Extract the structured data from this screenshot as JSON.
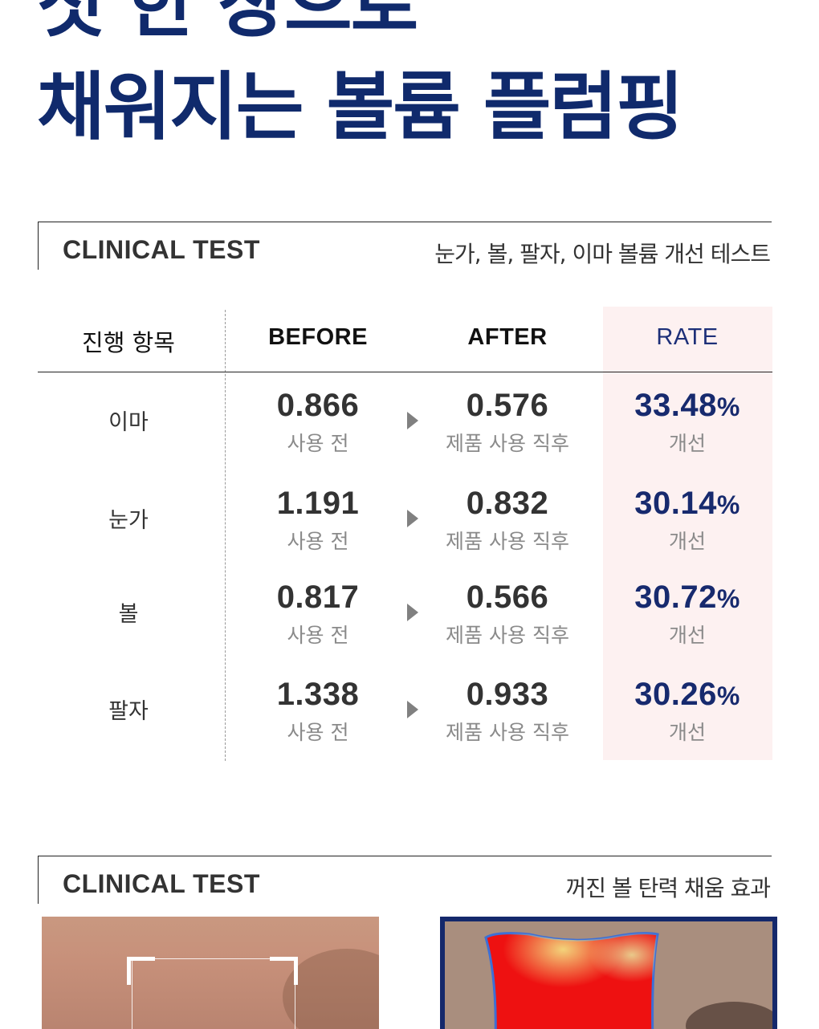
{
  "headline": {
    "line1": "첫 한 장으로",
    "line2": "채워지는 볼륨 플럼핑"
  },
  "section1": {
    "title": "CLINICAL TEST",
    "subtitle": "눈가, 볼, 팔자, 이마 볼륨 개선 테스트"
  },
  "table": {
    "headers": [
      "진행 항목",
      "BEFORE",
      "AFTER",
      "RATE"
    ],
    "rows": [
      {
        "item": "이마",
        "before": "0.866",
        "before_label": "사용 전",
        "after": "0.576",
        "after_label": "제품 사용 직후",
        "rate": "33.48",
        "rate_unit": "%",
        "rate_label": "개선"
      },
      {
        "item": "눈가",
        "before": "1.191",
        "before_label": "사용 전",
        "after": "0.832",
        "after_label": "제품 사용 직후",
        "rate": "30.14",
        "rate_unit": "%",
        "rate_label": "개선"
      },
      {
        "item": "볼",
        "before": "0.817",
        "before_label": "사용 전",
        "after": "0.566",
        "after_label": "제품 사용 직후",
        "rate": "30.72",
        "rate_unit": "%",
        "rate_label": "개선"
      },
      {
        "item": "팔자",
        "before": "1.338",
        "before_label": "사용 전",
        "after": "0.933",
        "after_label": "제품 사용 직후",
        "rate": "30.26",
        "rate_unit": "%",
        "rate_label": "개선"
      }
    ]
  },
  "section2": {
    "title": "CLINICAL TEST",
    "subtitle": "꺼진 볼 탄력 채움 효과"
  },
  "colors": {
    "navy": "#102a6c",
    "rate_bg": "#fdf1f1",
    "arrow": "#808080"
  }
}
